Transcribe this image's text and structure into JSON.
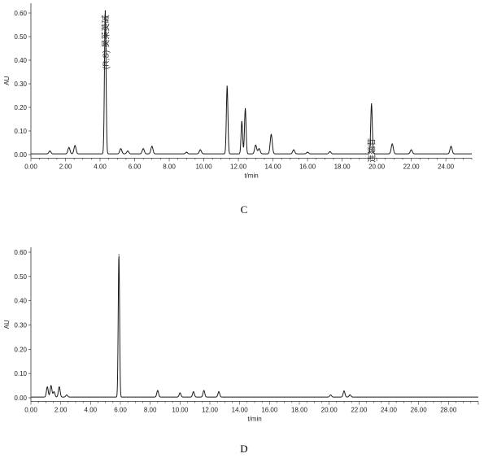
{
  "chart_data": [
    {
      "type": "line",
      "caption": "C",
      "ylabel": "AU",
      "xlabel": "t/min",
      "xlim": [
        0,
        25.5
      ],
      "ylim": [
        -0.015,
        0.62
      ],
      "xticks": [
        0,
        2,
        4,
        6,
        8,
        10,
        12,
        14,
        16,
        18,
        20,
        22,
        24
      ],
      "xtick_labels": [
        "0.00",
        "2.00",
        "4.00",
        "6.00",
        "8.00",
        "10.00",
        "12.00",
        "14.00",
        "16.00",
        "18.00",
        "20.00",
        "22.00",
        "24.00"
      ],
      "yticks": [
        0,
        0.1,
        0.2,
        0.3,
        0.4,
        0.5,
        0.6
      ],
      "ytick_labels": [
        "0.00",
        "0.10",
        "0.20",
        "0.30",
        "0.40",
        "0.50",
        "0.60"
      ],
      "baseline": 0.003,
      "peaks": [
        {
          "x": 1.1,
          "y": 0.015
        },
        {
          "x": 2.2,
          "y": 0.03
        },
        {
          "x": 2.55,
          "y": 0.038
        },
        {
          "x": 4.3,
          "y": 0.61
        },
        {
          "x": 5.2,
          "y": 0.025
        },
        {
          "x": 5.6,
          "y": 0.015
        },
        {
          "x": 6.5,
          "y": 0.025
        },
        {
          "x": 7.0,
          "y": 0.035
        },
        {
          "x": 9.0,
          "y": 0.01
        },
        {
          "x": 9.8,
          "y": 0.02
        },
        {
          "x": 11.35,
          "y": 0.29
        },
        {
          "x": 12.2,
          "y": 0.14
        },
        {
          "x": 12.4,
          "y": 0.195
        },
        {
          "x": 13.0,
          "y": 0.04
        },
        {
          "x": 13.2,
          "y": 0.025
        },
        {
          "x": 13.9,
          "y": 0.085
        },
        {
          "x": 15.2,
          "y": 0.02
        },
        {
          "x": 16.0,
          "y": 0.01
        },
        {
          "x": 17.3,
          "y": 0.012
        },
        {
          "x": 19.7,
          "y": 0.215
        },
        {
          "x": 20.9,
          "y": 0.045
        },
        {
          "x": 22.0,
          "y": 0.02
        },
        {
          "x": 24.3,
          "y": 0.035
        }
      ],
      "annotations": [
        {
          "text": "(R,S)-吴茱萸碱",
          "x": 4.3,
          "y": 0.61
        },
        {
          "text": "连翘苷",
          "x": 19.7,
          "y": 0.215
        }
      ]
    },
    {
      "type": "line",
      "caption": "D",
      "ylabel": "AU",
      "xlabel": "t/min",
      "xlim": [
        0,
        30
      ],
      "ylim": [
        -0.015,
        0.62
      ],
      "xticks": [
        0,
        2,
        4,
        6,
        8,
        10,
        12,
        14,
        16,
        18,
        20,
        22,
        24,
        26,
        28
      ],
      "xtick_labels": [
        "0.00",
        "2.00",
        "4.00",
        "6.00",
        "8.00",
        "10.00",
        "12.00",
        "14.00",
        "16.00",
        "18.00",
        "20.00",
        "22.00",
        "24.00",
        "26.00",
        "28.00"
      ],
      "yticks": [
        0,
        0.1,
        0.2,
        0.3,
        0.4,
        0.5,
        0.6
      ],
      "ytick_labels": [
        "0.00",
        "0.10",
        "0.20",
        "0.30",
        "0.40",
        "0.50",
        "0.60"
      ],
      "baseline": 0.003,
      "peaks": [
        {
          "x": 1.1,
          "y": 0.045
        },
        {
          "x": 1.35,
          "y": 0.05
        },
        {
          "x": 1.55,
          "y": 0.025
        },
        {
          "x": 1.9,
          "y": 0.045
        },
        {
          "x": 2.4,
          "y": 0.012
        },
        {
          "x": 5.9,
          "y": 0.59
        },
        {
          "x": 8.5,
          "y": 0.03
        },
        {
          "x": 10.0,
          "y": 0.02
        },
        {
          "x": 10.9,
          "y": 0.025
        },
        {
          "x": 11.6,
          "y": 0.03
        },
        {
          "x": 12.6,
          "y": 0.025
        },
        {
          "x": 20.1,
          "y": 0.012
        },
        {
          "x": 21.0,
          "y": 0.028
        },
        {
          "x": 21.4,
          "y": 0.012
        }
      ],
      "annotations": []
    }
  ]
}
